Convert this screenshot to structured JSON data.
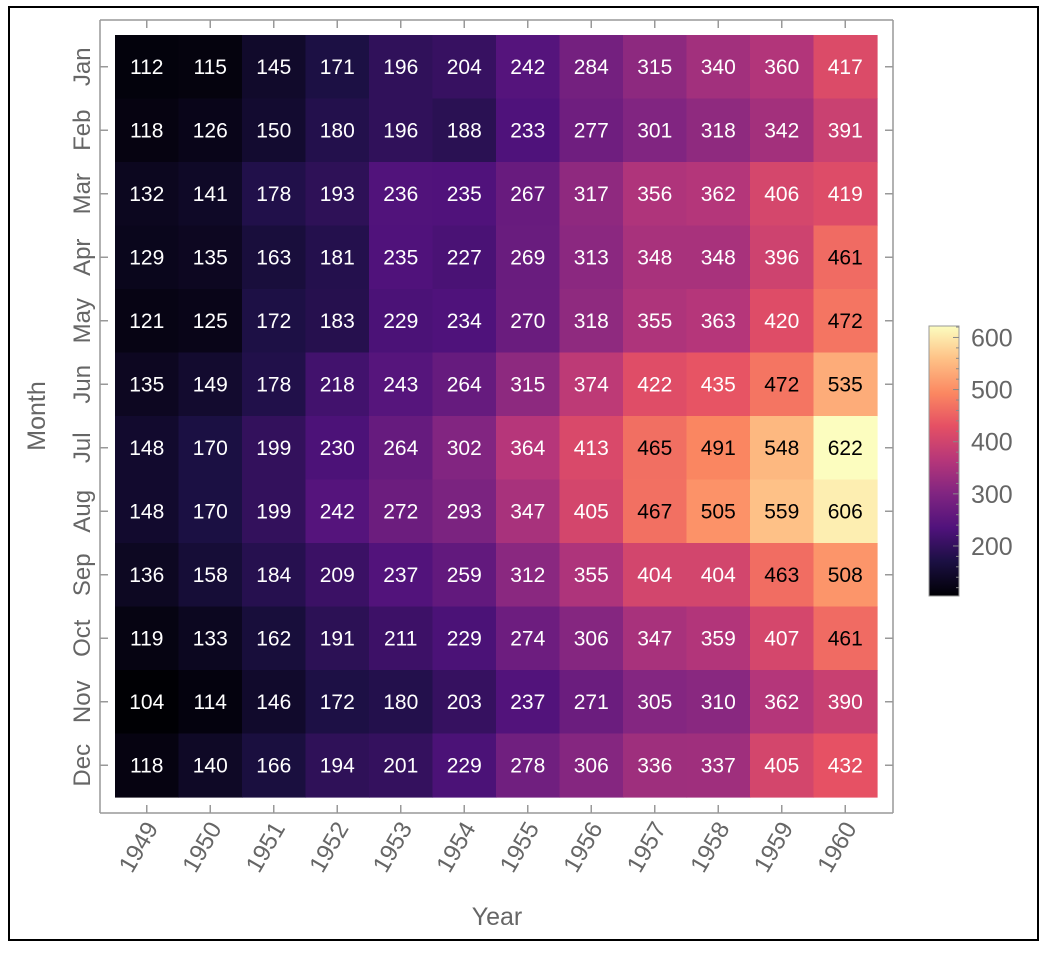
{
  "chart_data": {
    "type": "heatmap",
    "title": "",
    "xlabel": "Year",
    "ylabel": "Month",
    "x": [
      "1949",
      "1950",
      "1951",
      "1952",
      "1953",
      "1954",
      "1955",
      "1956",
      "1957",
      "1958",
      "1959",
      "1960"
    ],
    "y": [
      "Jan",
      "Feb",
      "Mar",
      "Apr",
      "May",
      "Jun",
      "Jul",
      "Aug",
      "Sep",
      "Oct",
      "Nov",
      "Dec"
    ],
    "values": [
      [
        112,
        115,
        145,
        171,
        196,
        204,
        242,
        284,
        315,
        340,
        360,
        417
      ],
      [
        118,
        126,
        150,
        180,
        196,
        188,
        233,
        277,
        301,
        318,
        342,
        391
      ],
      [
        132,
        141,
        178,
        193,
        236,
        235,
        267,
        317,
        356,
        362,
        406,
        419
      ],
      [
        129,
        135,
        163,
        181,
        235,
        227,
        269,
        313,
        348,
        348,
        396,
        461
      ],
      [
        121,
        125,
        172,
        183,
        229,
        234,
        270,
        318,
        355,
        363,
        420,
        472
      ],
      [
        135,
        149,
        178,
        218,
        243,
        264,
        315,
        374,
        422,
        435,
        472,
        535
      ],
      [
        148,
        170,
        199,
        230,
        264,
        302,
        364,
        413,
        465,
        491,
        548,
        622
      ],
      [
        148,
        170,
        199,
        242,
        272,
        293,
        347,
        405,
        467,
        505,
        559,
        606
      ],
      [
        136,
        158,
        184,
        209,
        237,
        259,
        312,
        355,
        404,
        404,
        463,
        508
      ],
      [
        119,
        133,
        162,
        191,
        211,
        229,
        274,
        306,
        347,
        359,
        407,
        461
      ],
      [
        104,
        114,
        146,
        172,
        180,
        203,
        237,
        271,
        305,
        310,
        362,
        390
      ],
      [
        118,
        140,
        166,
        194,
        201,
        229,
        278,
        306,
        336,
        337,
        405,
        432
      ]
    ],
    "color_range": [
      104,
      622
    ],
    "colormap": "magma",
    "legend": {
      "placement": "right",
      "ticks": [
        200,
        300,
        400,
        500,
        600
      ]
    },
    "grid": false
  }
}
